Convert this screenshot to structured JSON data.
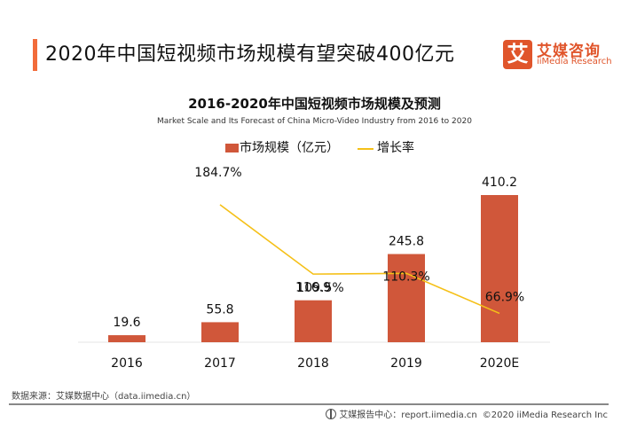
{
  "header": {
    "title": "2020年中国短视频市场规模有望突破400亿元",
    "logo": {
      "mark": "艾",
      "name_cn": "艾媒咨询",
      "name_en": "iiMedia Research"
    }
  },
  "chart_data": {
    "type": "bar",
    "title": "2016-2020年中国短视频市场规模及预测",
    "subtitle": "Market Scale and Its Forecast of China Micro-Video Industry from 2016 to 2020",
    "categories": [
      "2016",
      "2017",
      "2018",
      "2019",
      "2020E"
    ],
    "series": [
      {
        "name": "市场规模（亿元）",
        "type": "bar",
        "color": "#d0573a",
        "values": [
          19.6,
          55.8,
          116.9,
          245.8,
          410.2
        ],
        "labels": [
          "19.6",
          "55.8",
          "116.9",
          "245.8",
          "410.2"
        ]
      },
      {
        "name": "增长率",
        "type": "line",
        "color": "#f5c018",
        "values": [
          null,
          184.7,
          109.5,
          110.3,
          66.9
        ],
        "labels": [
          "",
          "184.7%",
          "109.5%",
          "110.3%",
          "66.9%"
        ]
      }
    ],
    "legend": {
      "position": "top-center",
      "items": [
        "市场规模（亿元）",
        "增长率"
      ]
    },
    "xlabel": "",
    "ylabel": "",
    "ylim": [
      0,
      450
    ],
    "y2lim": [
      0,
      250
    ],
    "grid": false
  },
  "footer": {
    "source": "数据来源：艾媒数据中心（data.iimedia.cn）",
    "report_center": "艾媒报告中心：report.iimedia.cn",
    "copyright": "©2020  iiMedia Research  Inc"
  }
}
